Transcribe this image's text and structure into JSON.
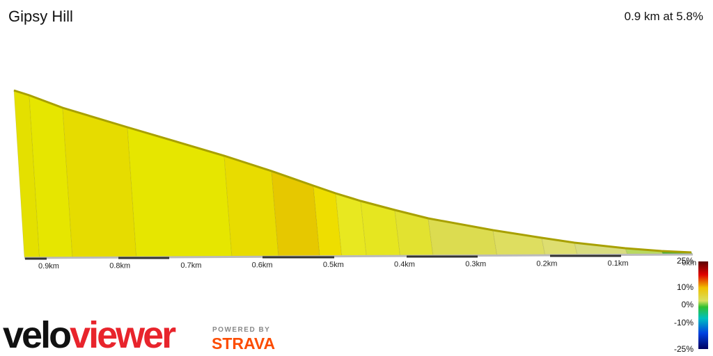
{
  "header": {
    "title": "Gipsy Hill",
    "summary": "0.9 km at 5.8%"
  },
  "distance_labels": [
    "0.9km",
    "0.8km",
    "0.7km",
    "0.6km",
    "0.5km",
    "0.4km",
    "0.3km",
    "0.2km",
    "0.1km",
    "0km"
  ],
  "color_scale": {
    "labels": [
      "25%",
      "10%",
      "0%",
      "-10%",
      "-25%"
    ]
  },
  "branding": {
    "logo_prefix": "velo",
    "logo_suffix": "viewer",
    "powered_by": "POWERED BY",
    "strava": "STRAVA"
  }
}
